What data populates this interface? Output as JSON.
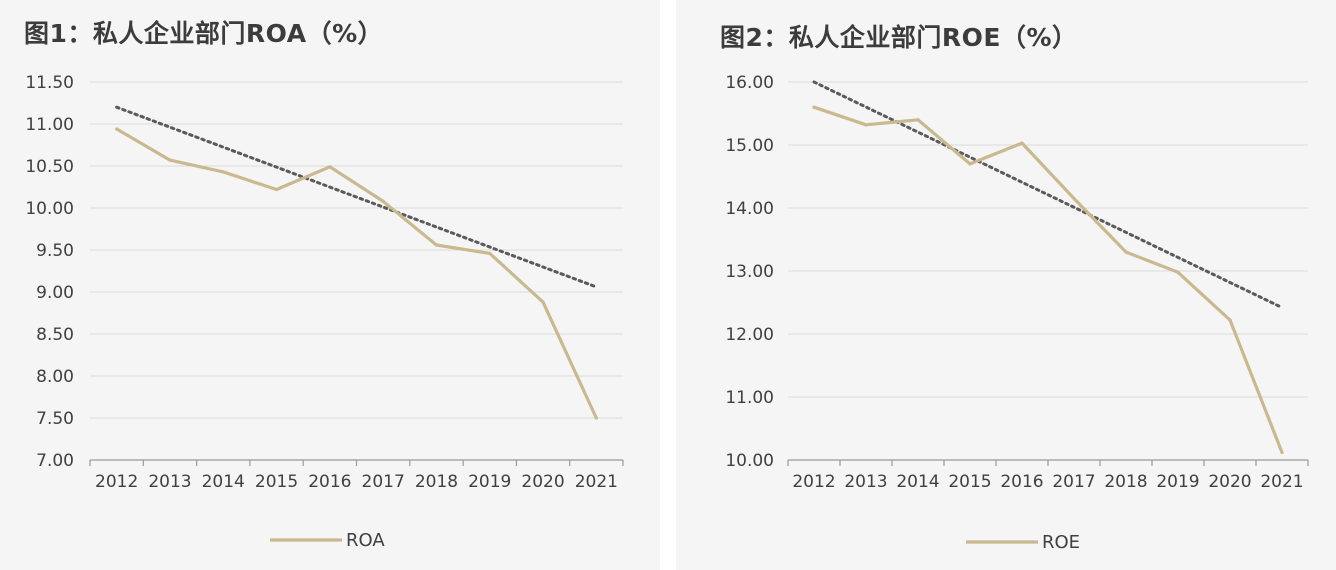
{
  "chart_data": [
    {
      "type": "line",
      "title": "图1：私人企业部门ROA（%）",
      "categories": [
        "2012",
        "2013",
        "2014",
        "2015",
        "2016",
        "2017",
        "2018",
        "2019",
        "2020",
        "2021"
      ],
      "y_ticks": [
        "11.50",
        "11.00",
        "10.50",
        "10.00",
        "9.50",
        "9.00",
        "8.50",
        "8.00",
        "7.50",
        "7.00"
      ],
      "ylim": [
        7.0,
        11.5
      ],
      "grid": true,
      "legend_position": "bottom",
      "series": [
        {
          "name": "ROA",
          "values": [
            10.94,
            10.57,
            10.43,
            10.22,
            10.49,
            10.08,
            9.56,
            9.46,
            8.88,
            7.5
          ],
          "color": "#c9b98f"
        }
      ],
      "trendline": {
        "style": "dotted",
        "color": "#5a5a5a",
        "start": 11.2,
        "end": 9.06
      }
    },
    {
      "type": "line",
      "title": "图2：私人企业部门ROE（%）",
      "categories": [
        "2012",
        "2013",
        "2014",
        "2015",
        "2016",
        "2017",
        "2018",
        "2019",
        "2020",
        "2021"
      ],
      "y_ticks": [
        "16.00",
        "15.00",
        "14.00",
        "13.00",
        "12.00",
        "11.00",
        "10.00"
      ],
      "ylim": [
        10.0,
        16.0
      ],
      "grid": true,
      "legend_position": "bottom",
      "series": [
        {
          "name": "ROE",
          "values": [
            15.6,
            15.32,
            15.4,
            14.7,
            15.03,
            14.15,
            13.3,
            12.98,
            12.22,
            10.12
          ],
          "color": "#c9b98f"
        }
      ],
      "trendline": {
        "style": "dotted",
        "color": "#5a5a5a",
        "start": 16.0,
        "end": 12.42
      }
    }
  ]
}
